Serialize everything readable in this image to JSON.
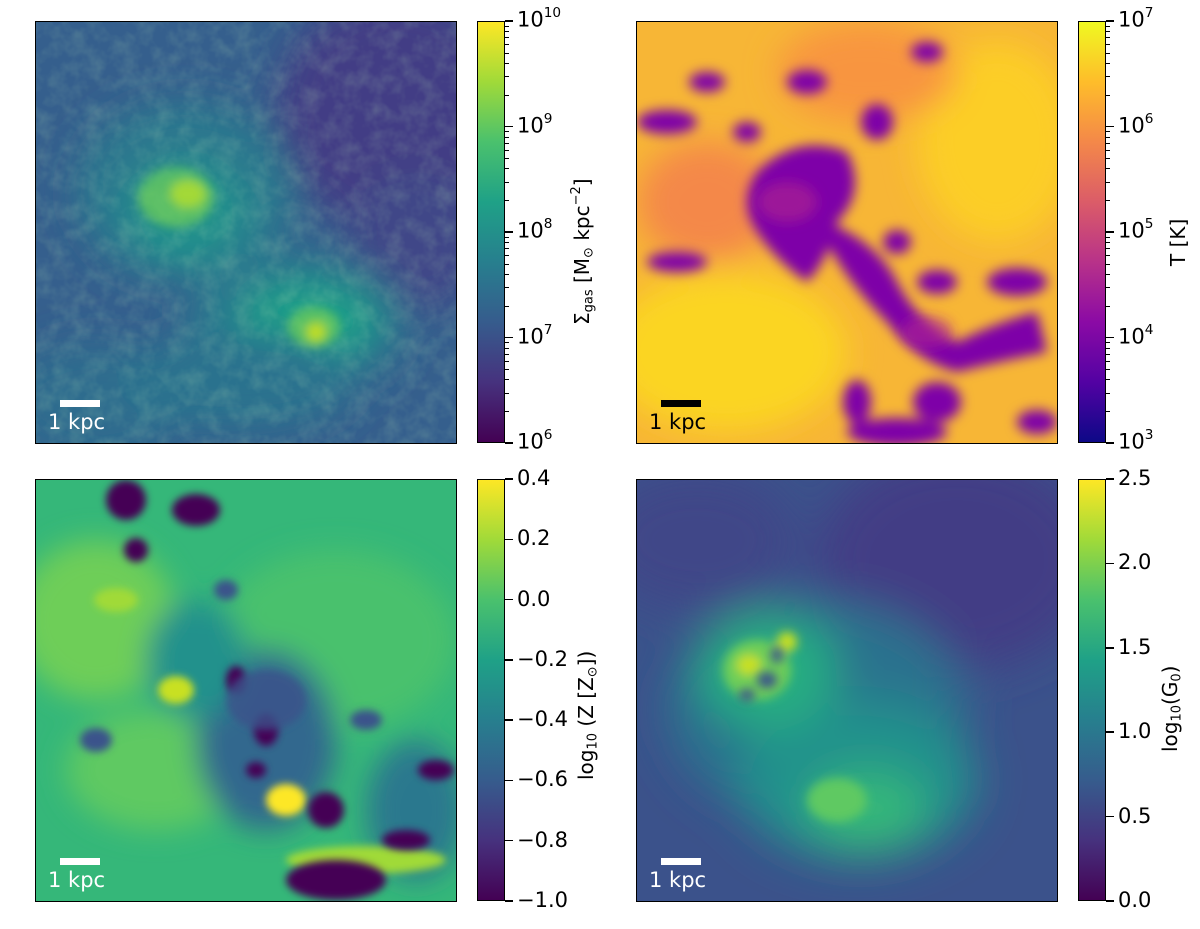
{
  "panels": [
    {
      "id": "surface-density",
      "scale_bar": "1 kpc",
      "colorbar": {
        "colormap": "viridis",
        "scale": "log",
        "ticks": [
          {
            "base": "10",
            "exp": "10"
          },
          {
            "base": "10",
            "exp": "9"
          },
          {
            "base": "10",
            "exp": "8"
          },
          {
            "base": "10",
            "exp": "7"
          },
          {
            "base": "10",
            "exp": "6"
          }
        ],
        "label": {
          "main": "Σ",
          "sub": "gas",
          "bracket_open": " [M",
          "sun_sub": "⊙",
          "unit": " kpc",
          "unit_exp": "−2",
          "bracket_close": "]"
        }
      }
    },
    {
      "id": "temperature",
      "scale_bar": "1 kpc",
      "colorbar": {
        "colormap": "plasma",
        "scale": "log",
        "ticks": [
          {
            "base": "10",
            "exp": "7"
          },
          {
            "base": "10",
            "exp": "6"
          },
          {
            "base": "10",
            "exp": "5"
          },
          {
            "base": "10",
            "exp": "4"
          },
          {
            "base": "10",
            "exp": "3"
          }
        ],
        "label": {
          "text": "T [K]"
        }
      }
    },
    {
      "id": "metallicity",
      "scale_bar": "1 kpc",
      "colorbar": {
        "colormap": "viridis",
        "scale": "linear",
        "ticks": [
          "0.4",
          "0.2",
          "0.0",
          "−0.2",
          "−0.4",
          "−0.6",
          "−0.8",
          "−1.0"
        ],
        "label": {
          "pre": "log",
          "sub": "10",
          "mid": " (Z [Z",
          "sun_sub": "⊙",
          "post": "])"
        }
      }
    },
    {
      "id": "radiation-field",
      "scale_bar": "1 kpc",
      "colorbar": {
        "colormap": "viridis",
        "scale": "linear",
        "ticks": [
          "2.5",
          "2.0",
          "1.5",
          "1.0",
          "0.5",
          "0.0"
        ],
        "label": {
          "pre": "log",
          "sub": "10",
          "mid": "(G",
          "sub2": "0",
          "post": ")"
        }
      }
    }
  ]
}
